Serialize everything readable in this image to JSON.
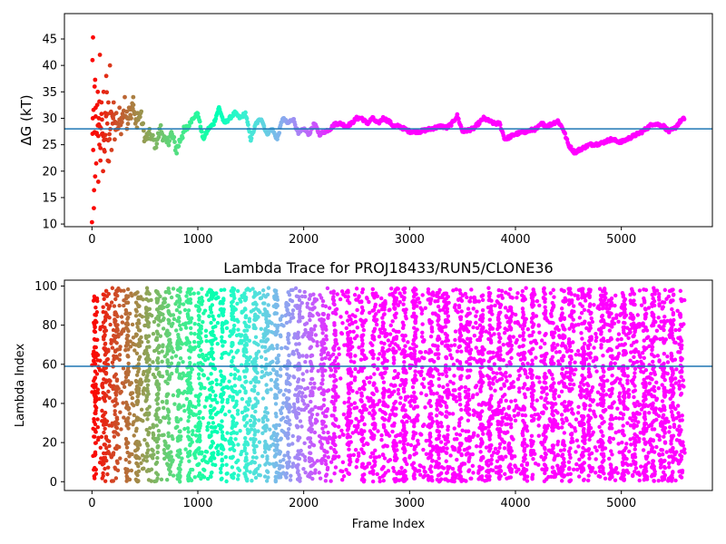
{
  "chart_data": [
    {
      "type": "scatter",
      "title": "",
      "xlabel": "",
      "ylabel": "ΔG (kT)",
      "xlim": [
        -260,
        5860
      ],
      "ylim": [
        9.5,
        49.8
      ],
      "xticks": [
        0,
        1000,
        2000,
        3000,
        4000,
        5000
      ],
      "yticks": [
        10,
        15,
        20,
        25,
        30,
        35,
        40,
        45
      ],
      "hline": 28.0,
      "hline_color": "#1f77b4",
      "color_scale": "rainbow",
      "grid": false,
      "legend": "none",
      "trace": {
        "x": [
          0,
          10,
          20,
          30,
          40,
          50,
          60,
          70,
          80,
          90,
          100,
          120,
          140,
          160,
          180,
          200,
          230,
          260,
          300,
          340,
          380,
          420,
          460,
          500,
          550,
          600,
          650,
          700,
          750,
          800,
          850,
          900,
          950,
          1000,
          1050,
          1100,
          1150,
          1200,
          1250,
          1300,
          1350,
          1400,
          1450,
          1500,
          1550,
          1600,
          1650,
          1700,
          1750,
          1800,
          1850,
          1900,
          1950,
          2000,
          2050,
          2100,
          2150,
          2200,
          2250,
          2300,
          2350,
          2400,
          2450,
          2500,
          2550,
          2600,
          2650,
          2700,
          2750,
          2800,
          2850,
          2900,
          2950,
          3000,
          3100,
          3200,
          3300,
          3350,
          3400,
          3450,
          3500,
          3600,
          3700,
          3800,
          3850,
          3900,
          4000,
          4100,
          4200,
          4250,
          4300,
          4400,
          4450,
          4500,
          4560,
          4600,
          4700,
          4800,
          4900,
          5000,
          5100,
          5200,
          5300,
          5350,
          5400,
          5450,
          5500,
          5560,
          5600
        ],
        "y": [
          10,
          45,
          16,
          38,
          21,
          32,
          26,
          33,
          25,
          30,
          28,
          24,
          34,
          22,
          32,
          30,
          28,
          29,
          31,
          30,
          33,
          29,
          31,
          26,
          27,
          25,
          28,
          25,
          27,
          24,
          27,
          28,
          30,
          31,
          26,
          28,
          29,
          32,
          29,
          30,
          31,
          30,
          31,
          26,
          29,
          30,
          27,
          28,
          26,
          30,
          29,
          30,
          27,
          28,
          27,
          29,
          27,
          27.5,
          28,
          29,
          29,
          28.5,
          29,
          30,
          30,
          29,
          30,
          29,
          30,
          29.5,
          28.5,
          28.5,
          28,
          27.5,
          27.5,
          28,
          28.5,
          28.2,
          29,
          30.5,
          27.5,
          28,
          30,
          29,
          29,
          26,
          27,
          27.5,
          28,
          29,
          28.5,
          29.5,
          28,
          25,
          23.5,
          24,
          25,
          25.2,
          26,
          25.5,
          26.5,
          27.5,
          29,
          28.8,
          28.5,
          27.5,
          28,
          29.5,
          30
        ]
      },
      "cloud": {
        "x": [
          5,
          8,
          12,
          18,
          25,
          30,
          35,
          45,
          55,
          60,
          65,
          70,
          75,
          80,
          90,
          95,
          105,
          110,
          115,
          125,
          130,
          135,
          145,
          150,
          155,
          165,
          170,
          175,
          185,
          195,
          205,
          215,
          230,
          245,
          260,
          275,
          290,
          310,
          330,
          350,
          370,
          390,
          410,
          430
        ],
        "y": [
          41,
          30,
          24,
          13,
          36,
          19,
          32,
          27,
          35,
          18,
          30,
          25,
          42,
          22,
          33,
          27,
          20,
          35,
          24,
          31,
          26,
          38,
          29,
          22,
          33,
          27,
          40,
          31,
          24,
          29,
          33,
          26,
          31,
          28,
          32,
          27,
          30,
          34,
          28,
          32,
          30,
          34,
          29,
          31
        ]
      }
    },
    {
      "type": "scatter",
      "title": "Lambda Trace for PROJ18433/RUN5/CLONE36",
      "xlabel": "Frame Index",
      "ylabel": "Lambda Index",
      "xlim": [
        -260,
        5860
      ],
      "ylim": [
        -4.5,
        103
      ],
      "xticks": [
        0,
        1000,
        2000,
        3000,
        4000,
        5000
      ],
      "yticks": [
        0,
        20,
        40,
        60,
        80,
        100
      ],
      "hline": 59,
      "hline_color": "#1f77b4",
      "color_scale": "rainbow",
      "grid": false,
      "legend": "none",
      "x_range": [
        0,
        5600
      ],
      "lambda_range": [
        0,
        99
      ],
      "columns": [
        30,
        120,
        230,
        330,
        430,
        530,
        620,
        720,
        820,
        920,
        1020,
        1130,
        1230,
        1330,
        1450,
        1540,
        1650,
        1740,
        1850,
        1950,
        2070,
        2180,
        2290,
        2430,
        2560,
        2660,
        2760,
        2860,
        2950,
        3050,
        3200,
        3270,
        3350,
        3480,
        3560,
        3680,
        3760,
        3850,
        3950,
        4080,
        4160,
        4280,
        4350,
        4450,
        4520,
        4640,
        4700,
        4820,
        4900,
        5020,
        5120,
        5220,
        5300,
        5400,
        5480,
        5560
      ]
    }
  ]
}
